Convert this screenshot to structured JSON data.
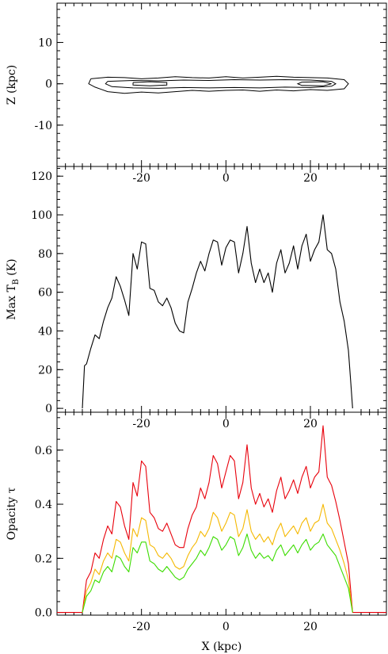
{
  "chart_data": [
    {
      "type": "contour",
      "xlabel": "",
      "ylabel": "Z (kpc)",
      "xlim": [
        -40,
        38
      ],
      "ylim": [
        -20,
        19.5
      ],
      "xticks": [
        -20,
        0,
        20
      ],
      "yticks": [
        -10,
        0,
        10
      ],
      "contours": [
        {
          "level": "outer",
          "points": [
            [
              -32,
              1.2
            ],
            [
              -28,
              1.6
            ],
            [
              -24,
              1.5
            ],
            [
              -20,
              1.2
            ],
            [
              -16,
              1.4
            ],
            [
              -12,
              1.7
            ],
            [
              -8,
              1.5
            ],
            [
              -4,
              1.4
            ],
            [
              0,
              1.7
            ],
            [
              4,
              1.4
            ],
            [
              8,
              1.6
            ],
            [
              12,
              1.8
            ],
            [
              16,
              1.6
            ],
            [
              20,
              1.5
            ],
            [
              24,
              1.4
            ],
            [
              28,
              1.0
            ],
            [
              29,
              0
            ],
            [
              28,
              -1.2
            ],
            [
              24,
              -1.6
            ],
            [
              20,
              -1.4
            ],
            [
              16,
              -1.7
            ],
            [
              12,
              -1.5
            ],
            [
              8,
              -1.8
            ],
            [
              4,
              -1.5
            ],
            [
              0,
              -1.6
            ],
            [
              -4,
              -1.8
            ],
            [
              -8,
              -1.6
            ],
            [
              -12,
              -1.9
            ],
            [
              -16,
              -2.2
            ],
            [
              -20,
              -2.0
            ],
            [
              -24,
              -2.3
            ],
            [
              -28,
              -1.9
            ],
            [
              -31,
              -0.8
            ],
            [
              -32.5,
              0
            ],
            [
              -32,
              1.2
            ]
          ]
        },
        {
          "level": "inner",
          "points": [
            [
              -28,
              0.6
            ],
            [
              -22,
              0.8
            ],
            [
              -16,
              0.7
            ],
            [
              -10,
              0.9
            ],
            [
              -4,
              0.8
            ],
            [
              2,
              1.0
            ],
            [
              8,
              0.9
            ],
            [
              14,
              1.0
            ],
            [
              20,
              0.9
            ],
            [
              25,
              0.6
            ],
            [
              26,
              0
            ],
            [
              25,
              -0.6
            ],
            [
              20,
              -0.9
            ],
            [
              14,
              -0.8
            ],
            [
              8,
              -1.0
            ],
            [
              2,
              -0.9
            ],
            [
              -4,
              -1.0
            ],
            [
              -10,
              -0.9
            ],
            [
              -16,
              -1.1
            ],
            [
              -22,
              -1.0
            ],
            [
              -27,
              -0.7
            ],
            [
              -28.5,
              0
            ],
            [
              -28,
              0.6
            ]
          ]
        },
        {
          "level": "core",
          "points": [
            [
              -22,
              0.3
            ],
            [
              -18,
              0.5
            ],
            [
              -14,
              0.3
            ],
            [
              -14,
              -0.3
            ],
            [
              -18,
              -0.5
            ],
            [
              -22,
              -0.3
            ],
            [
              -22,
              0.3
            ]
          ]
        },
        {
          "level": "core",
          "points": [
            [
              18,
              0.4
            ],
            [
              23,
              0.5
            ],
            [
              25,
              0
            ],
            [
              23,
              -0.5
            ],
            [
              18,
              -0.4
            ],
            [
              17,
              0
            ],
            [
              18,
              0.4
            ]
          ]
        }
      ]
    },
    {
      "type": "line",
      "xlabel": "",
      "ylabel": "Max T",
      "ylabel_sub": "B",
      "ylabel_unit": "(K)",
      "xlim": [
        -40,
        38
      ],
      "ylim": [
        -2,
        125
      ],
      "xticks": [
        -20,
        0,
        20
      ],
      "yticks": [
        0,
        20,
        40,
        60,
        80,
        100,
        120
      ],
      "series": [
        {
          "x": [
            -34,
            -33.5,
            -33,
            -32,
            -31,
            -30,
            -29,
            -28,
            -27,
            -26,
            -25,
            -24,
            -23,
            -22,
            -21,
            -20,
            -19,
            -18,
            -17,
            -16,
            -15,
            -14,
            -13,
            -12,
            -11,
            -10,
            -9,
            -8,
            -7,
            -6,
            -5,
            -4,
            -3,
            -2,
            -1,
            0,
            1,
            2,
            3,
            4,
            5,
            6,
            7,
            8,
            9,
            10,
            11,
            12,
            13,
            14,
            15,
            16,
            17,
            18,
            19,
            20,
            21,
            22,
            23,
            24,
            25,
            26,
            27,
            28,
            29,
            29.5,
            30
          ],
          "y": [
            0,
            22,
            23,
            31,
            38,
            36,
            45,
            52,
            57,
            68,
            63,
            56,
            48,
            80,
            72,
            86,
            85,
            62,
            61,
            55,
            53,
            57,
            52,
            44,
            40,
            39,
            55,
            62,
            70,
            76,
            71,
            80,
            87,
            86,
            74,
            83,
            87,
            86,
            70,
            80,
            94,
            75,
            65,
            72,
            65,
            70,
            60,
            75,
            82,
            70,
            75,
            84,
            72,
            84,
            90,
            76,
            82,
            86,
            100,
            82,
            80,
            72,
            55,
            45,
            30,
            15,
            0
          ]
        }
      ]
    },
    {
      "type": "line",
      "xlabel": "X (kpc)",
      "ylabel": "Opacity τ",
      "xlim": [
        -40,
        38
      ],
      "ylim": [
        -0.01,
        0.74
      ],
      "xticks": [
        -20,
        0,
        20
      ],
      "yticks": [
        0.0,
        0.2,
        0.4,
        0.6
      ],
      "ytick_labels": [
        "0.0",
        "0.2",
        "0.4",
        "0.6"
      ],
      "series": [
        {
          "color": "#e8000b",
          "x": [
            -40,
            -34,
            -33,
            -32,
            -31,
            -30,
            -29,
            -28,
            -27,
            -26,
            -25,
            -24,
            -23,
            -22,
            -21,
            -20,
            -19,
            -18,
            -17,
            -16,
            -15,
            -14,
            -13,
            -12,
            -11,
            -10,
            -9,
            -8,
            -7,
            -6,
            -5,
            -4,
            -3,
            -2,
            -1,
            0,
            1,
            2,
            3,
            4,
            5,
            6,
            7,
            8,
            9,
            10,
            11,
            12,
            13,
            14,
            15,
            16,
            17,
            18,
            19,
            20,
            21,
            22,
            23,
            24,
            25,
            26,
            27,
            28,
            29,
            30,
            38
          ],
          "y": [
            0,
            0,
            0.12,
            0.15,
            0.22,
            0.2,
            0.27,
            0.32,
            0.29,
            0.41,
            0.39,
            0.32,
            0.27,
            0.48,
            0.43,
            0.56,
            0.54,
            0.37,
            0.35,
            0.31,
            0.3,
            0.33,
            0.29,
            0.25,
            0.24,
            0.24,
            0.31,
            0.36,
            0.39,
            0.46,
            0.42,
            0.48,
            0.58,
            0.55,
            0.46,
            0.52,
            0.58,
            0.56,
            0.42,
            0.48,
            0.62,
            0.46,
            0.4,
            0.44,
            0.39,
            0.42,
            0.37,
            0.45,
            0.5,
            0.42,
            0.45,
            0.49,
            0.44,
            0.5,
            0.54,
            0.46,
            0.5,
            0.52,
            0.69,
            0.5,
            0.47,
            0.41,
            0.34,
            0.26,
            0.18,
            0,
            0
          ]
        },
        {
          "color": "#f5b800",
          "x": [
            -34,
            -33,
            -32,
            -31,
            -30,
            -29,
            -28,
            -27,
            -26,
            -25,
            -24,
            -23,
            -22,
            -21,
            -20,
            -19,
            -18,
            -17,
            -16,
            -15,
            -14,
            -13,
            -12,
            -11,
            -10,
            -9,
            -8,
            -7,
            -6,
            -5,
            -4,
            -3,
            -2,
            -1,
            0,
            1,
            2,
            3,
            4,
            5,
            6,
            7,
            8,
            9,
            10,
            11,
            12,
            13,
            14,
            15,
            16,
            17,
            18,
            19,
            20,
            21,
            22,
            23,
            24,
            25,
            26,
            27,
            28,
            29,
            30
          ],
          "y": [
            0,
            0.08,
            0.11,
            0.16,
            0.14,
            0.19,
            0.22,
            0.2,
            0.27,
            0.26,
            0.22,
            0.19,
            0.31,
            0.28,
            0.35,
            0.34,
            0.25,
            0.24,
            0.21,
            0.2,
            0.22,
            0.2,
            0.17,
            0.16,
            0.17,
            0.21,
            0.24,
            0.26,
            0.3,
            0.28,
            0.31,
            0.37,
            0.35,
            0.3,
            0.33,
            0.37,
            0.36,
            0.28,
            0.31,
            0.38,
            0.3,
            0.27,
            0.29,
            0.26,
            0.28,
            0.25,
            0.3,
            0.33,
            0.28,
            0.3,
            0.32,
            0.29,
            0.33,
            0.35,
            0.3,
            0.33,
            0.34,
            0.4,
            0.33,
            0.31,
            0.27,
            0.23,
            0.18,
            0.12,
            0
          ]
        },
        {
          "color": "#3cdc00",
          "x": [
            -34,
            -33,
            -32,
            -31,
            -30,
            -29,
            -28,
            -27,
            -26,
            -25,
            -24,
            -23,
            -22,
            -21,
            -20,
            -19,
            -18,
            -17,
            -16,
            -15,
            -14,
            -13,
            -12,
            -11,
            -10,
            -9,
            -8,
            -7,
            -6,
            -5,
            -4,
            -3,
            -2,
            -1,
            0,
            1,
            2,
            3,
            4,
            5,
            6,
            7,
            8,
            9,
            10,
            11,
            12,
            13,
            14,
            15,
            16,
            17,
            18,
            19,
            20,
            21,
            22,
            23,
            24,
            25,
            26,
            27,
            28,
            29,
            30
          ],
          "y": [
            0,
            0.06,
            0.08,
            0.12,
            0.11,
            0.15,
            0.17,
            0.15,
            0.21,
            0.2,
            0.17,
            0.15,
            0.24,
            0.22,
            0.26,
            0.26,
            0.19,
            0.18,
            0.16,
            0.15,
            0.17,
            0.15,
            0.13,
            0.12,
            0.13,
            0.16,
            0.18,
            0.2,
            0.23,
            0.21,
            0.24,
            0.28,
            0.27,
            0.23,
            0.25,
            0.28,
            0.27,
            0.21,
            0.24,
            0.29,
            0.23,
            0.2,
            0.22,
            0.2,
            0.21,
            0.19,
            0.23,
            0.25,
            0.21,
            0.23,
            0.25,
            0.22,
            0.25,
            0.27,
            0.23,
            0.25,
            0.26,
            0.29,
            0.25,
            0.23,
            0.21,
            0.17,
            0.13,
            0.09,
            0
          ]
        }
      ]
    }
  ]
}
